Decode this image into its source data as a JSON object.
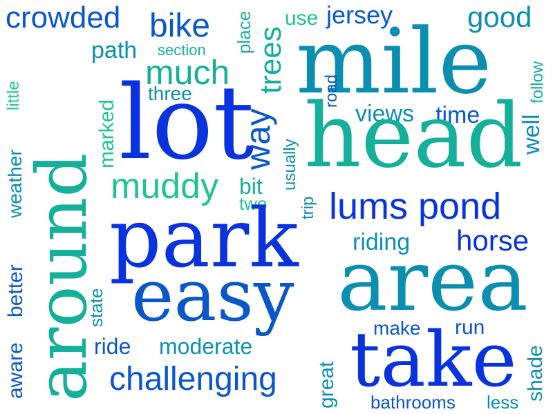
{
  "cloud": {
    "palette": {
      "blue": "#0a33e0",
      "mid_blue": "#0a57cc",
      "teal": "#0a8fb0",
      "sea_green": "#14b09a",
      "green": "#1fc58f"
    },
    "words": [
      "crowded",
      "bike",
      "place",
      "use",
      "jersey",
      "good",
      "path",
      "section",
      "mile",
      "much",
      "trees",
      "follow",
      "around",
      "little",
      "three",
      "marked",
      "lot",
      "road",
      "views",
      "time",
      "well",
      "weather",
      "way",
      "usually",
      "head",
      "muddy",
      "bit",
      "two",
      "trip",
      "lums pond",
      "park",
      "riding",
      "horse",
      "better",
      "state",
      "aware",
      "easy",
      "area",
      "make",
      "run",
      "ride",
      "moderate",
      "take",
      "shade",
      "challenging",
      "great",
      "bathrooms",
      "less"
    ]
  }
}
